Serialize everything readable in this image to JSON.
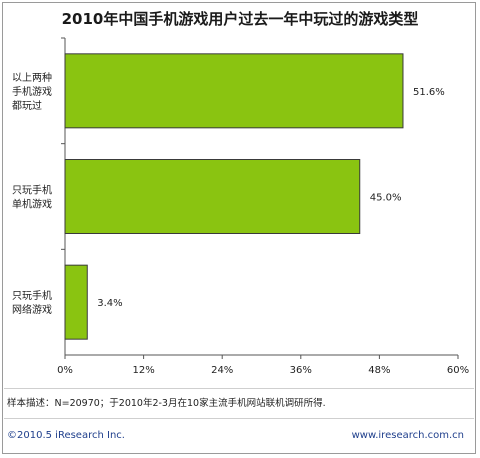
{
  "chart_data": {
    "type": "bar",
    "orientation": "horizontal",
    "title": "2010年中国手机游戏用户过去一年中玩过的游戏类型",
    "categories": [
      [
        "以上两种",
        "手机游戏",
        "都玩过"
      ],
      [
        "只玩手机",
        "单机游戏"
      ],
      [
        "只玩手机",
        "网络游戏"
      ]
    ],
    "values": [
      51.6,
      45.0,
      3.4
    ],
    "value_labels": [
      "51.6%",
      "45.0%",
      "3.4%"
    ],
    "xlim": [
      0,
      60
    ],
    "x_ticks": [
      "0%",
      "12%",
      "24%",
      "36%",
      "48%",
      "60%"
    ],
    "grid": false,
    "bar_color": "#8ac411",
    "bar_edge_color": "#3a3a3a"
  },
  "footer": {
    "note": "样本描述：N=20970；于2010年2-3月在10家主流手机网站联机调研所得.",
    "copyright": "©2010.5 iResearch Inc.",
    "website": "www.iresearch.com.cn"
  }
}
